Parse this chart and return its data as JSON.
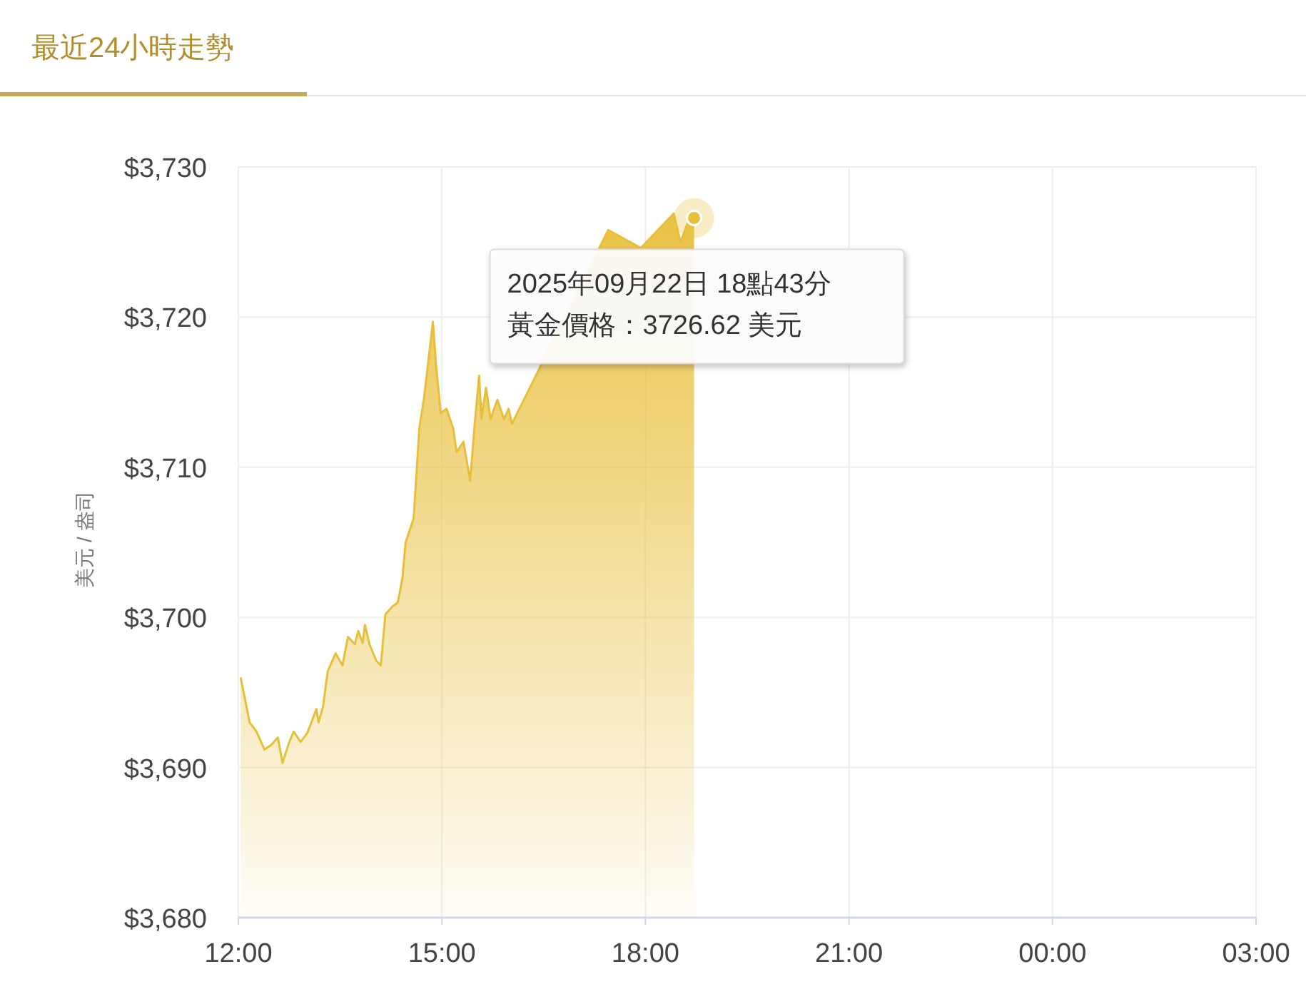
{
  "chart_data": {
    "type": "area",
    "title": "最近24小時走勢",
    "ylabel": "美元 / 盎司",
    "x": [
      "2025-09-22T12:02",
      "2025-09-22T12:10",
      "2025-09-22T12:16",
      "2025-09-22T12:23",
      "2025-09-22T12:29",
      "2025-09-22T12:35",
      "2025-09-22T12:39",
      "2025-09-22T12:45",
      "2025-09-22T12:49",
      "2025-09-22T12:55",
      "2025-09-22T13:01",
      "2025-09-22T13:09",
      "2025-09-22T13:11",
      "2025-09-22T13:15",
      "2025-09-22T13:19",
      "2025-09-22T13:26",
      "2025-09-22T13:32",
      "2025-09-22T13:37",
      "2025-09-22T13:43",
      "2025-09-22T13:46",
      "2025-09-22T13:50",
      "2025-09-22T13:52",
      "2025-09-22T13:56",
      "2025-09-22T14:02",
      "2025-09-22T14:06",
      "2025-09-22T14:10",
      "2025-09-22T14:16",
      "2025-09-22T14:21",
      "2025-09-22T14:25",
      "2025-09-22T14:28",
      "2025-09-22T14:32",
      "2025-09-22T14:35",
      "2025-09-22T14:40",
      "2025-09-22T14:44",
      "2025-09-22T14:47",
      "2025-09-22T14:52",
      "2025-09-22T14:55",
      "2025-09-22T14:59",
      "2025-09-22T15:04",
      "2025-09-22T15:10",
      "2025-09-22T15:13",
      "2025-09-22T15:19",
      "2025-09-22T15:25",
      "2025-09-22T15:29",
      "2025-09-22T15:33",
      "2025-09-22T15:35",
      "2025-09-22T15:39",
      "2025-09-22T15:43",
      "2025-09-22T15:49",
      "2025-09-22T15:55",
      "2025-09-22T15:59",
      "2025-09-22T16:02",
      "2025-09-22T17:27",
      "2025-09-22T17:56",
      "2025-09-22T18:25",
      "2025-09-22T18:31",
      "2025-09-22T18:37",
      "2025-09-22T18:43"
    ],
    "series": [
      {
        "color": "#e8bf3a",
        "values": [
          3696.0,
          3693.0,
          3692.4,
          3691.2,
          3691.5,
          3692.0,
          3690.3,
          3691.7,
          3692.4,
          3691.7,
          3692.3,
          3693.9,
          3693.0,
          3694.1,
          3696.4,
          3697.6,
          3696.8,
          3698.7,
          3698.2,
          3699.1,
          3698.3,
          3699.5,
          3698.2,
          3697.1,
          3696.8,
          3700.2,
          3700.7,
          3701.0,
          3702.6,
          3705.0,
          3705.9,
          3706.6,
          3712.6,
          3714.5,
          3716.4,
          3719.7,
          3716.7,
          3713.6,
          3713.9,
          3712.6,
          3711.0,
          3711.7,
          3709.1,
          3712.9,
          3716.1,
          3713.2,
          3715.3,
          3713.2,
          3714.5,
          3713.2,
          3713.9,
          3712.9,
          3725.8,
          3724.6,
          3726.9,
          3725.0,
          3726.2,
          3726.6
        ]
      }
    ],
    "xlim": [
      "2025-09-22T12:00",
      "2025-09-23T03:00"
    ],
    "ylim": [
      3680,
      3730
    ],
    "xticks": [
      {
        "value": "2025-09-22T12:00",
        "label": "12:00"
      },
      {
        "value": "2025-09-22T15:00",
        "label": "15:00"
      },
      {
        "value": "2025-09-22T18:00",
        "label": "18:00"
      },
      {
        "value": "2025-09-22T21:00",
        "label": "21:00"
      },
      {
        "value": "2025-09-23T00:00",
        "label": "00:00"
      },
      {
        "value": "2025-09-23T03:00",
        "label": "03:00"
      }
    ],
    "yticks": [
      {
        "value": 3680,
        "label": "$3,680"
      },
      {
        "value": 3690,
        "label": "$3,690"
      },
      {
        "value": 3700,
        "label": "$3,700"
      },
      {
        "value": 3710,
        "label": "$3,710"
      },
      {
        "value": 3720,
        "label": "$3,720"
      },
      {
        "value": 3730,
        "label": "$3,730"
      }
    ],
    "grid": true,
    "annotations": [
      {
        "text": "2025年09月22日 18點43分",
        "x": "2025-09-22T18:43",
        "y": 3726.6
      },
      "黃金價格：3726.62 美元"
    ]
  }
}
